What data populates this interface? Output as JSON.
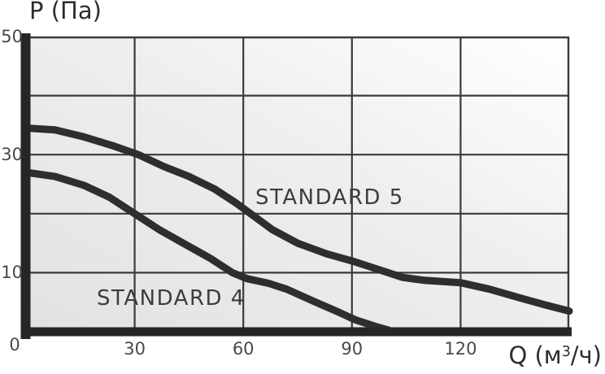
{
  "y_axis_title": "P (Па)",
  "x_axis_title_parts": {
    "pre": "Q (м",
    "sup": "3",
    "post": "/ч)"
  },
  "chart_data": {
    "type": "line",
    "title": "",
    "xlabel": "Q (м³/ч)",
    "ylabel": "P (Па)",
    "xlim": [
      0,
      150
    ],
    "ylim": [
      0,
      50
    ],
    "grid": true,
    "grid_x_values": [
      30,
      60,
      90,
      120
    ],
    "grid_y_values": [
      10,
      20,
      30,
      40
    ],
    "x_ticks": [
      {
        "value": 30,
        "label": "30"
      },
      {
        "value": 60,
        "label": "60"
      },
      {
        "value": 90,
        "label": "90"
      },
      {
        "value": 120,
        "label": "120"
      }
    ],
    "y_ticks": [
      {
        "value": 50,
        "label": "50"
      },
      {
        "value": 30,
        "label": "30"
      },
      {
        "value": 10,
        "label": "10"
      }
    ],
    "origin_label": "0",
    "legend_position": "on-curve",
    "series": [
      {
        "name": "STANDARD 5",
        "points": [
          [
            0,
            34.5
          ],
          [
            8,
            34.2
          ],
          [
            16,
            33
          ],
          [
            24,
            31.5
          ],
          [
            31,
            30
          ],
          [
            38,
            28
          ],
          [
            45,
            26.3
          ],
          [
            52,
            24.2
          ],
          [
            58,
            21.8
          ],
          [
            62,
            20
          ],
          [
            68,
            17.3
          ],
          [
            75,
            15
          ],
          [
            83,
            13.2
          ],
          [
            90,
            12
          ],
          [
            95,
            11
          ],
          [
            100,
            10
          ],
          [
            104,
            9.2
          ],
          [
            110,
            8.7
          ],
          [
            120,
            8.3
          ],
          [
            128,
            7.2
          ],
          [
            136,
            5.8
          ],
          [
            143,
            4.6
          ],
          [
            150,
            3.5
          ]
        ]
      },
      {
        "name": "STANDARD 4",
        "points": [
          [
            0,
            27
          ],
          [
            8,
            26.3
          ],
          [
            16,
            24.8
          ],
          [
            23,
            22.8
          ],
          [
            30,
            20
          ],
          [
            37,
            17.2
          ],
          [
            44,
            14.8
          ],
          [
            51,
            12.4
          ],
          [
            57,
            10
          ],
          [
            61,
            9
          ],
          [
            67,
            8.2
          ],
          [
            72,
            7.2
          ],
          [
            80,
            5
          ],
          [
            86,
            3.4
          ],
          [
            91,
            2
          ],
          [
            97,
            0.8
          ],
          [
            100,
            0.3
          ]
        ]
      }
    ],
    "colors": {
      "curve": "#2e2e2e",
      "grid": "#3a3a3a",
      "axis": "#262626",
      "plot_bg_from": "#e2e2e2",
      "plot_bg_to": "#ffffff",
      "tick_text": "#4a4a4a",
      "axis_title_text": "#2d2d2d",
      "curve_label_text": "#3d3d3d"
    }
  }
}
